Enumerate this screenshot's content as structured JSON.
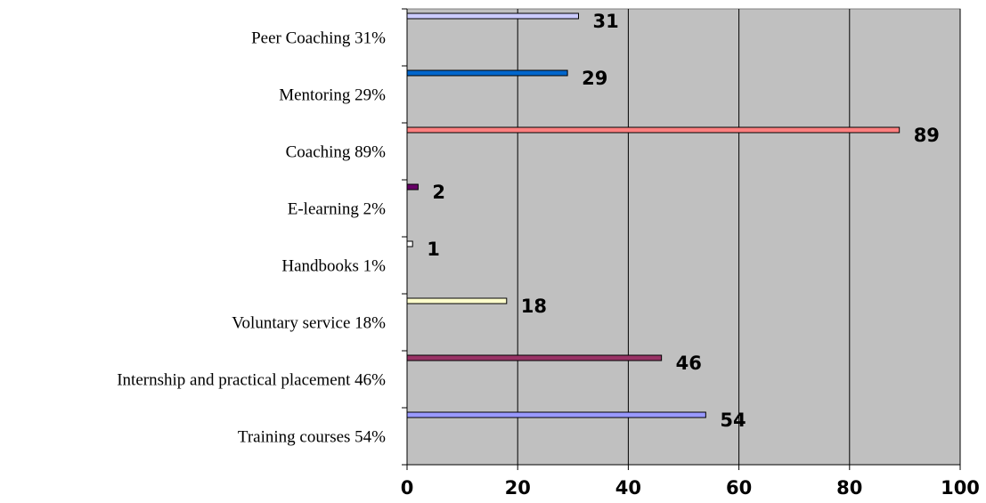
{
  "chart_data": {
    "type": "bar",
    "orientation": "horizontal",
    "categories": [
      "Peer Coaching 31%",
      "Mentoring 29%",
      "Coaching 89%",
      "E-learning 2%",
      "Handbooks 1%",
      "Voluntary service 18%",
      "Internship and practical placement 46%",
      "Training courses 54%"
    ],
    "values": [
      31,
      29,
      89,
      2,
      1,
      18,
      46,
      54
    ],
    "colors": [
      "#ccccff",
      "#0066cc",
      "#ff8080",
      "#660066",
      "#ffffff",
      "#ffffcc",
      "#993366",
      "#9999ff"
    ],
    "xlim": [
      0,
      100
    ],
    "xticks": [
      0,
      20,
      40,
      60,
      80,
      100
    ],
    "grid": true
  }
}
